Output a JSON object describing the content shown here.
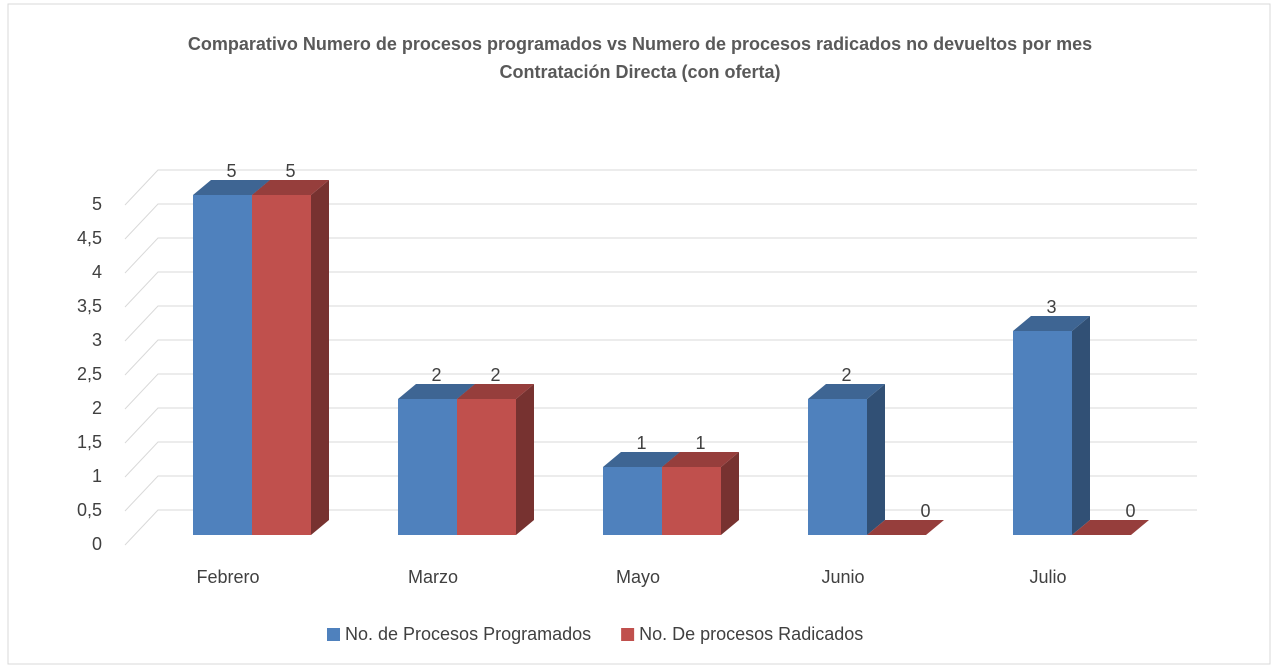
{
  "chart_data": {
    "type": "bar3d",
    "title": "Comparativo Numero de procesos programados vs Numero de procesos radicados no devueltos por mes Contratación Directa (con oferta)",
    "categories": [
      "Febrero",
      "Marzo",
      "Mayo",
      "Junio",
      "Julio"
    ],
    "series": [
      {
        "name": "No. de Procesos Programados",
        "color": "#4f81bd",
        "values": [
          5,
          2,
          1,
          2,
          3
        ]
      },
      {
        "name": "No. De procesos Radicados",
        "color": "#c0504d",
        "values": [
          5,
          2,
          1,
          0,
          0
        ]
      }
    ],
    "ylim": [
      0,
      5
    ],
    "yticks": [
      0,
      {
        "value": 0.5,
        "label": "0,5"
      },
      1,
      {
        "value": 1.5,
        "label": "1,5"
      },
      2,
      {
        "value": 2.5,
        "label": "2,5"
      },
      3,
      {
        "value": 3.5,
        "label": "3,5"
      },
      4,
      {
        "value": 4.5,
        "label": "4,5"
      },
      5
    ],
    "grid": true,
    "legend": "bottom"
  }
}
